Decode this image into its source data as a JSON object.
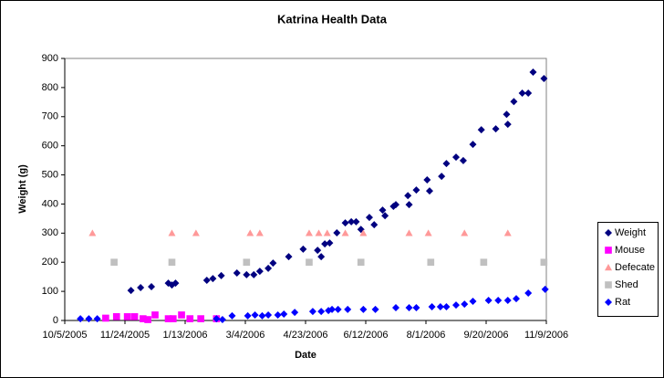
{
  "chart_data": {
    "type": "scatter",
    "title": "Katrina Health Data",
    "x_label": "Date",
    "y_label": "Weight (g)",
    "xlim": [
      "2005-10-05",
      "2006-11-09"
    ],
    "xticks": [
      {
        "value": "2005-10-05",
        "label": "10/5/2005"
      },
      {
        "value": "2005-11-24",
        "label": "11/24/2005"
      },
      {
        "value": "2006-01-13",
        "label": "1/13/2006"
      },
      {
        "value": "2006-03-04",
        "label": "3/4/2006"
      },
      {
        "value": "2006-04-23",
        "label": "4/23/2006"
      },
      {
        "value": "2006-06-12",
        "label": "6/12/2006"
      },
      {
        "value": "2006-08-01",
        "label": "8/1/2006"
      },
      {
        "value": "2006-09-20",
        "label": "9/20/2006"
      },
      {
        "value": "2006-11-09",
        "label": "11/9/2006"
      }
    ],
    "ylim": [
      0,
      900
    ],
    "yticks": [
      0,
      100,
      200,
      300,
      400,
      500,
      600,
      700,
      800,
      900
    ],
    "grid": false,
    "legend": "right",
    "series": [
      {
        "name": "Weight",
        "color": "#000080",
        "marker": "diamond",
        "x": [
          "2005-11-29",
          "2005-12-07",
          "2005-12-16",
          "2005-12-30",
          "2006-01-02",
          "2006-01-05",
          "2006-01-31",
          "2006-02-05",
          "2006-02-12",
          "2006-02-25",
          "2006-03-05",
          "2006-03-11",
          "2006-03-16",
          "2006-03-23",
          "2006-03-27",
          "2006-04-09",
          "2006-04-21",
          "2006-05-03",
          "2006-05-06",
          "2006-05-09",
          "2006-05-13",
          "2006-05-19",
          "2006-05-26",
          "2006-05-31",
          "2006-06-04",
          "2006-06-08",
          "2006-06-15",
          "2006-06-19",
          "2006-06-26",
          "2006-06-28",
          "2006-07-05",
          "2006-07-07",
          "2006-07-17",
          "2006-07-18",
          "2006-07-24",
          "2006-08-02",
          "2006-08-04",
          "2006-08-14",
          "2006-08-18",
          "2006-08-26",
          "2006-09-01",
          "2006-09-09",
          "2006-09-16",
          "2006-09-28",
          "2006-10-07",
          "2006-10-08",
          "2006-10-13",
          "2006-10-20",
          "2006-10-25",
          "2006-10-29",
          "2006-11-07"
        ],
        "values": [
          103,
          113,
          116,
          128,
          122,
          128,
          138,
          144,
          154,
          163,
          157,
          157,
          169,
          179,
          197,
          219,
          245,
          241,
          219,
          263,
          266,
          301,
          335,
          339,
          339,
          313,
          354,
          329,
          379,
          360,
          392,
          398,
          429,
          398,
          448,
          483,
          445,
          495,
          539,
          561,
          549,
          605,
          655,
          658,
          708,
          674,
          752,
          781,
          781,
          853,
          831
        ]
      },
      {
        "name": "Mouse",
        "color": "#FF00FF",
        "marker": "square",
        "x": [
          "2005-11-08",
          "2005-11-17",
          "2005-11-26",
          "2005-12-02",
          "2005-12-09",
          "2005-12-13",
          "2005-12-19",
          "2005-12-30",
          "2006-01-03",
          "2006-01-10",
          "2006-01-17",
          "2006-01-26",
          "2006-02-08"
        ],
        "values": [
          8,
          13,
          13,
          13,
          6,
          3,
          19,
          6,
          6,
          19,
          6,
          6,
          6
        ]
      },
      {
        "name": "Defecate",
        "color": "#FF9999",
        "marker": "triangle",
        "x": [
          "2005-10-28",
          "2006-01-02",
          "2006-01-22",
          "2006-03-08",
          "2006-03-16",
          "2006-04-26",
          "2006-05-04",
          "2006-05-11",
          "2006-05-26",
          "2006-06-10",
          "2006-07-18",
          "2006-08-03",
          "2006-09-02",
          "2006-10-08"
        ],
        "values": [
          300,
          300,
          300,
          300,
          300,
          300,
          300,
          300,
          300,
          300,
          300,
          300,
          300,
          300
        ]
      },
      {
        "name": "Shed",
        "color": "#C0C0C0",
        "marker": "square",
        "x": [
          "2005-11-15",
          "2006-01-02",
          "2006-03-05",
          "2006-04-26",
          "2006-06-08",
          "2006-08-05",
          "2006-09-18",
          "2006-11-07"
        ],
        "values": [
          200,
          200,
          200,
          200,
          200,
          200,
          200,
          200
        ]
      },
      {
        "name": "Rat",
        "color": "#0000FF",
        "marker": "diamond",
        "x": [
          "2005-10-18",
          "2005-10-25",
          "2005-11-01",
          "2006-02-08",
          "2006-02-13",
          "2006-02-21",
          "2006-03-06",
          "2006-03-12",
          "2006-03-18",
          "2006-03-23",
          "2006-03-31",
          "2006-04-05",
          "2006-04-14",
          "2006-04-29",
          "2006-05-06",
          "2006-05-12",
          "2006-05-15",
          "2006-05-20",
          "2006-05-28",
          "2006-06-10",
          "2006-06-20",
          "2006-07-07",
          "2006-07-18",
          "2006-07-24",
          "2006-08-06",
          "2006-08-13",
          "2006-08-18",
          "2006-08-26",
          "2006-09-02",
          "2006-09-09",
          "2006-09-22",
          "2006-09-30",
          "2006-10-08",
          "2006-10-15",
          "2006-10-25",
          "2006-11-08"
        ],
        "values": [
          6,
          6,
          6,
          6,
          3,
          16,
          16,
          19,
          16,
          19,
          19,
          22,
          28,
          31,
          31,
          34,
          38,
          38,
          38,
          38,
          38,
          44,
          44,
          44,
          47,
          47,
          47,
          53,
          56,
          66,
          69,
          69,
          69,
          75,
          94,
          107
        ]
      }
    ]
  }
}
